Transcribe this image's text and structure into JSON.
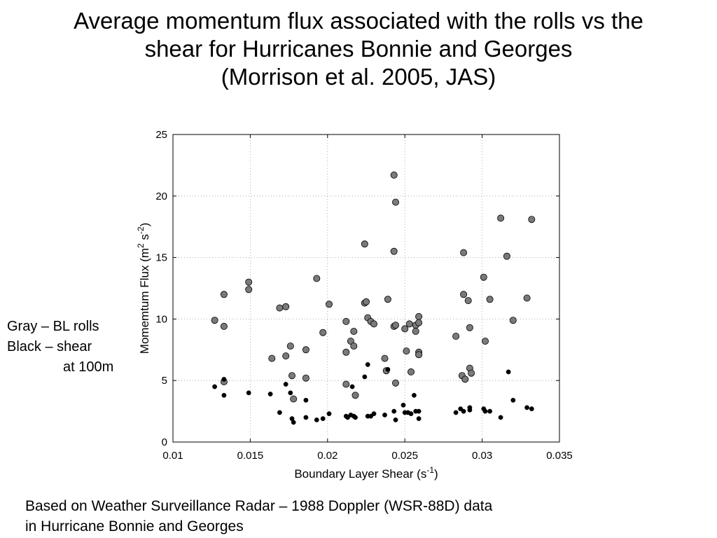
{
  "slide": {
    "title_lines": [
      "Average momentum flux associated with the rolls vs the",
      "shear for Hurricanes Bonnie and Georges",
      "(Morrison et al. 2005, JAS)"
    ],
    "legend_note": {
      "line1": "Gray – BL rolls",
      "line2": "Black – shear",
      "line3": "at 100m"
    },
    "footer_lines": [
      "Based on Weather Surveillance Radar – 1988 Doppler (WSR-88D) data",
      "in Hurricane Bonnie and Georges"
    ]
  },
  "chart_data": {
    "type": "scatter",
    "xlabel_main": "Boundary Layer Shear (s",
    "xlabel_sup": "-1",
    "xlabel_end": ")",
    "ylabel_main": "Momemtum Flux (m",
    "ylabel_sup1": "2",
    "ylabel_mid": " s",
    "ylabel_sup2": "-2",
    "ylabel_end": ")",
    "xlim": [
      0.01,
      0.035
    ],
    "ylim": [
      0,
      25
    ],
    "xticks": [
      0.01,
      0.015,
      0.02,
      0.025,
      0.03,
      0.035
    ],
    "xtick_labels": [
      "0.01",
      "0.015",
      "0.02",
      "0.025",
      "0.03",
      "0.035"
    ],
    "yticks": [
      0,
      5,
      10,
      15,
      20,
      25
    ],
    "ytick_labels": [
      "0",
      "5",
      "10",
      "15",
      "20",
      "25"
    ],
    "grid": true,
    "colors": {
      "gray": "#7a7a7a",
      "black": "#000000"
    },
    "series": [
      {
        "color": "gray",
        "points": [
          [
            0.0127,
            9.9
          ],
          [
            0.0133,
            12.0
          ],
          [
            0.0133,
            9.4
          ],
          [
            0.0133,
            4.9
          ],
          [
            0.0149,
            13.0
          ],
          [
            0.0149,
            12.4
          ],
          [
            0.0164,
            6.8
          ],
          [
            0.0169,
            10.9
          ],
          [
            0.0173,
            11.0
          ],
          [
            0.0173,
            7.0
          ],
          [
            0.0176,
            7.8
          ],
          [
            0.0177,
            5.4
          ],
          [
            0.0178,
            3.5
          ],
          [
            0.0186,
            7.5
          ],
          [
            0.0186,
            5.2
          ],
          [
            0.0193,
            13.3
          ],
          [
            0.0197,
            8.9
          ],
          [
            0.0201,
            11.2
          ],
          [
            0.0212,
            9.8
          ],
          [
            0.0212,
            7.3
          ],
          [
            0.0212,
            4.7
          ],
          [
            0.0215,
            8.2
          ],
          [
            0.0217,
            9.0
          ],
          [
            0.0217,
            7.8
          ],
          [
            0.0218,
            3.8
          ],
          [
            0.0224,
            16.1
          ],
          [
            0.0224,
            11.3
          ],
          [
            0.0225,
            11.4
          ],
          [
            0.0226,
            10.1
          ],
          [
            0.0228,
            9.8
          ],
          [
            0.023,
            9.6
          ],
          [
            0.0237,
            6.8
          ],
          [
            0.0238,
            5.8
          ],
          [
            0.0239,
            11.6
          ],
          [
            0.0243,
            21.7
          ],
          [
            0.0243,
            15.5
          ],
          [
            0.0244,
            19.5
          ],
          [
            0.0243,
            9.4
          ],
          [
            0.0244,
            9.5
          ],
          [
            0.0244,
            4.8
          ],
          [
            0.025,
            9.2
          ],
          [
            0.0251,
            7.4
          ],
          [
            0.0253,
            9.6
          ],
          [
            0.0254,
            5.7
          ],
          [
            0.0257,
            9.5
          ],
          [
            0.0257,
            9.0
          ],
          [
            0.0259,
            10.2
          ],
          [
            0.0259,
            9.7
          ],
          [
            0.0259,
            7.3
          ],
          [
            0.0259,
            7.1
          ],
          [
            0.0283,
            8.6
          ],
          [
            0.0287,
            5.4
          ],
          [
            0.0288,
            15.4
          ],
          [
            0.0288,
            12.0
          ],
          [
            0.0289,
            5.1
          ],
          [
            0.0291,
            11.5
          ],
          [
            0.0292,
            9.3
          ],
          [
            0.0292,
            6.0
          ],
          [
            0.0293,
            5.6
          ],
          [
            0.0301,
            13.4
          ],
          [
            0.0302,
            8.2
          ],
          [
            0.0305,
            11.6
          ],
          [
            0.0312,
            18.2
          ],
          [
            0.0316,
            15.1
          ],
          [
            0.032,
            9.9
          ],
          [
            0.0329,
            11.7
          ],
          [
            0.0332,
            18.1
          ]
        ]
      },
      {
        "color": "black",
        "points": [
          [
            0.0127,
            4.5
          ],
          [
            0.0133,
            5.1
          ],
          [
            0.0133,
            3.8
          ],
          [
            0.0149,
            4.0
          ],
          [
            0.0163,
            3.9
          ],
          [
            0.0169,
            2.4
          ],
          [
            0.0173,
            4.7
          ],
          [
            0.0176,
            4.0
          ],
          [
            0.0177,
            1.9
          ],
          [
            0.0178,
            1.6
          ],
          [
            0.0186,
            3.4
          ],
          [
            0.0186,
            2.0
          ],
          [
            0.0193,
            1.8
          ],
          [
            0.0197,
            1.9
          ],
          [
            0.0201,
            2.3
          ],
          [
            0.0212,
            2.1
          ],
          [
            0.0213,
            2.0
          ],
          [
            0.0215,
            2.2
          ],
          [
            0.0216,
            4.5
          ],
          [
            0.0217,
            2.1
          ],
          [
            0.0218,
            2.0
          ],
          [
            0.0224,
            5.3
          ],
          [
            0.0226,
            6.3
          ],
          [
            0.0226,
            2.1
          ],
          [
            0.0228,
            2.1
          ],
          [
            0.023,
            2.3
          ],
          [
            0.0237,
            2.2
          ],
          [
            0.0239,
            5.9
          ],
          [
            0.0243,
            2.5
          ],
          [
            0.0244,
            1.8
          ],
          [
            0.0249,
            3.0
          ],
          [
            0.025,
            2.4
          ],
          [
            0.0252,
            2.4
          ],
          [
            0.0254,
            2.3
          ],
          [
            0.0256,
            3.8
          ],
          [
            0.0257,
            2.5
          ],
          [
            0.0259,
            1.9
          ],
          [
            0.0259,
            2.5
          ],
          [
            0.0283,
            2.4
          ],
          [
            0.0286,
            2.7
          ],
          [
            0.0288,
            2.5
          ],
          [
            0.0292,
            2.8
          ],
          [
            0.0292,
            2.6
          ],
          [
            0.0301,
            2.7
          ],
          [
            0.0302,
            2.5
          ],
          [
            0.0305,
            2.5
          ],
          [
            0.0312,
            2.0
          ],
          [
            0.0317,
            5.7
          ],
          [
            0.032,
            3.4
          ],
          [
            0.0329,
            2.8
          ],
          [
            0.0332,
            2.7
          ]
        ]
      }
    ]
  }
}
